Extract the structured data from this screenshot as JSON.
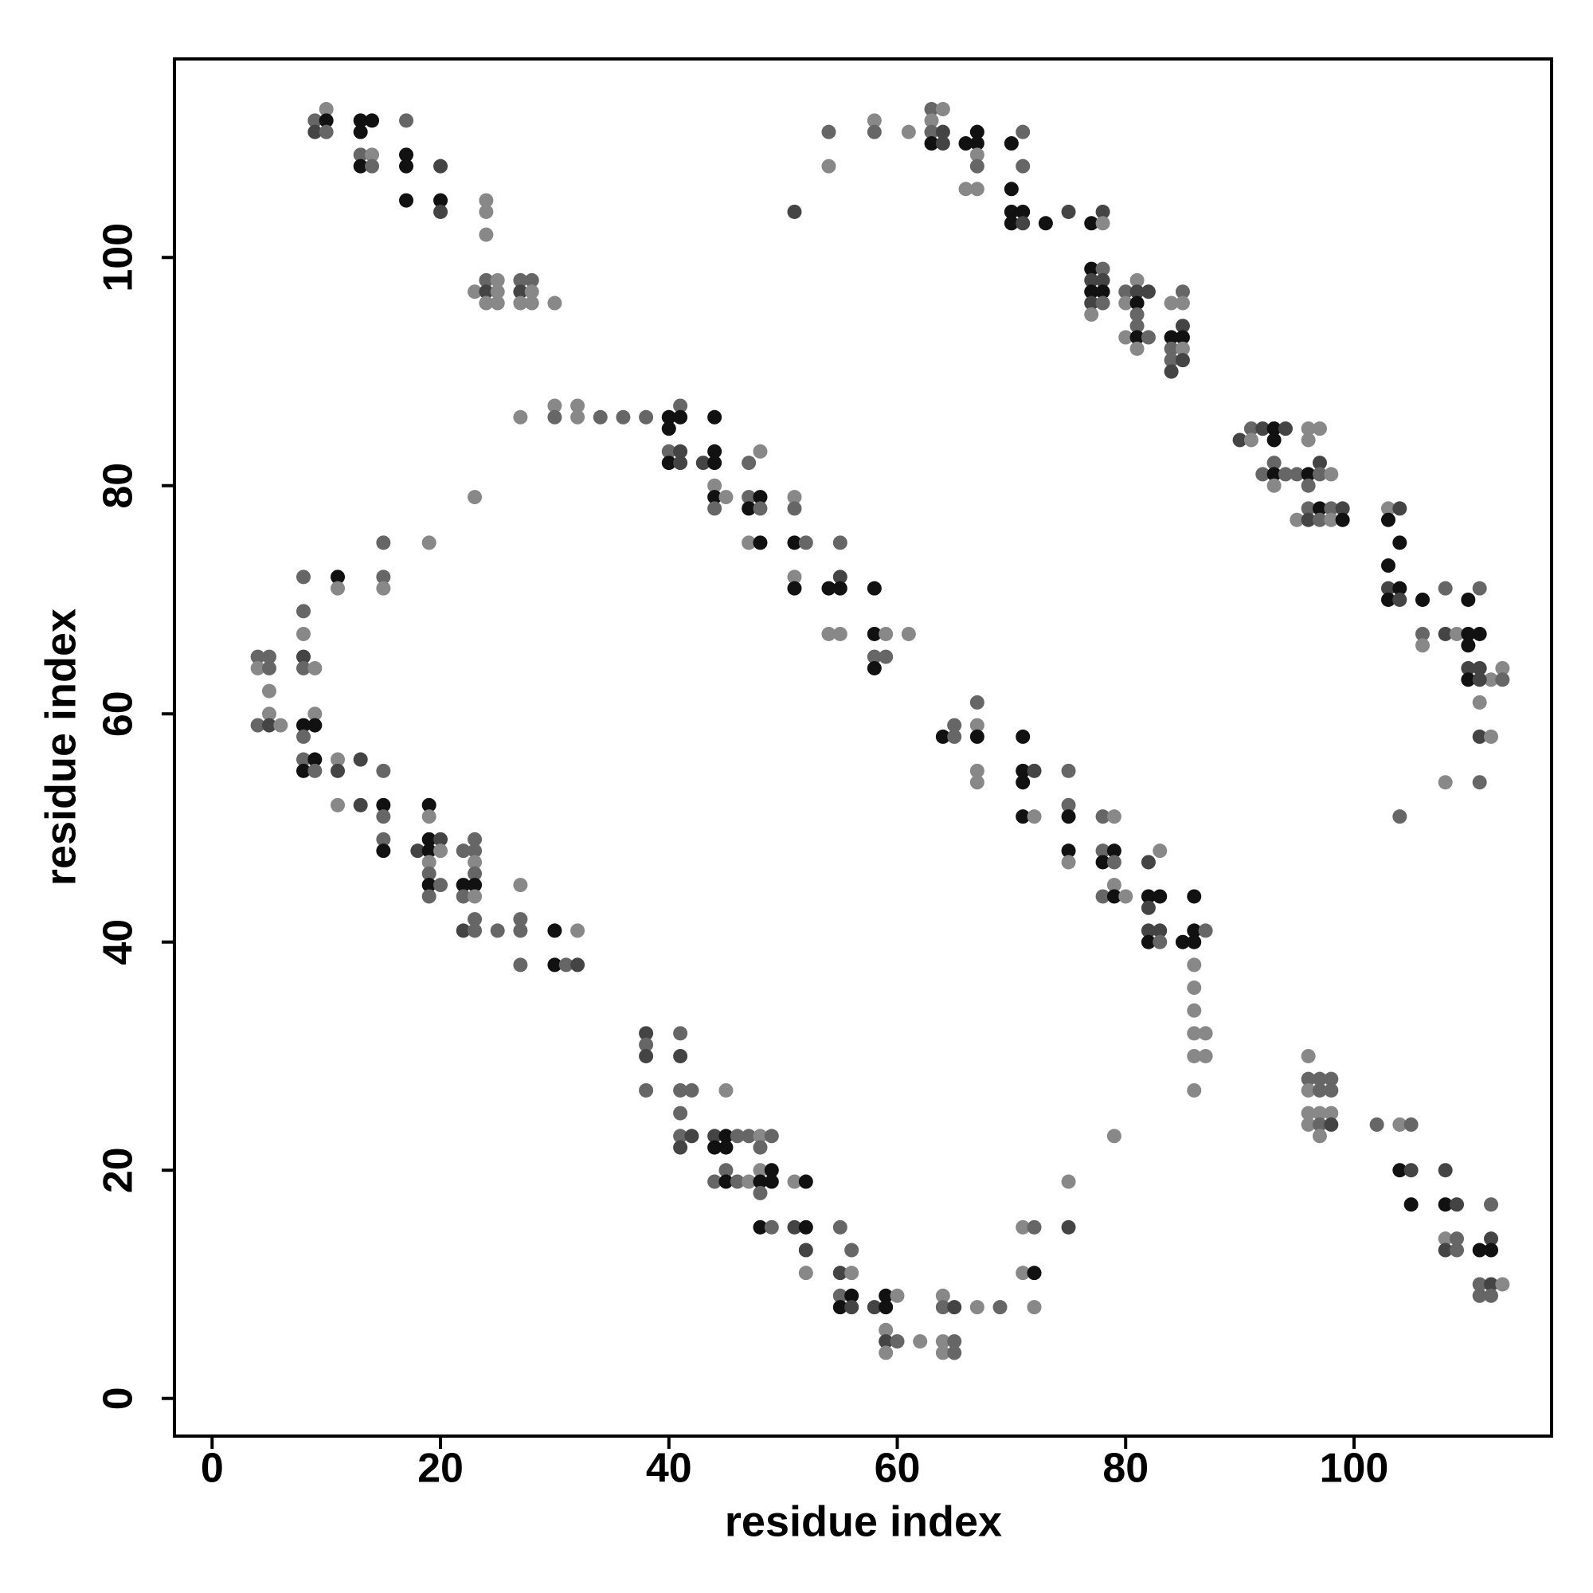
{
  "chart_data": {
    "type": "scatter",
    "xlabel": "residue index",
    "ylabel": "residue index",
    "xlim": [
      -3.3,
      117.3
    ],
    "ylim": [
      -3.3,
      117.4
    ],
    "xticks": [
      0,
      20,
      40,
      60,
      80,
      100
    ],
    "yticks": [
      0,
      20,
      40,
      60,
      80,
      100
    ],
    "grid": false,
    "x": [
      9,
      9,
      10,
      10,
      10,
      13,
      13,
      14,
      13,
      13,
      14,
      14,
      17,
      17,
      17,
      17,
      20,
      20,
      20,
      24,
      24,
      24,
      23,
      24,
      24,
      24,
      25,
      25,
      25,
      27,
      27,
      27,
      28,
      28,
      28,
      30,
      27,
      30,
      30,
      32,
      32,
      34,
      36,
      38,
      40,
      40,
      41,
      41,
      44,
      40,
      40,
      41,
      41,
      43,
      44,
      44,
      44,
      44,
      44,
      45,
      47,
      48,
      47,
      48,
      47,
      48,
      47,
      48,
      51,
      51,
      51,
      52,
      51,
      51,
      55,
      54,
      55,
      55,
      54,
      55,
      58,
      58,
      59,
      58,
      59,
      58,
      61,
      23,
      19,
      15,
      11,
      11,
      15,
      15,
      8,
      8,
      8,
      8,
      8,
      9,
      4,
      5,
      4,
      5,
      5,
      5,
      4,
      5,
      6,
      9,
      8,
      9,
      8,
      8,
      9,
      8,
      9,
      11,
      11,
      13,
      15,
      11,
      13,
      15,
      15,
      15,
      15,
      18,
      19,
      19,
      19,
      20,
      19,
      20,
      19,
      19,
      19,
      20,
      19,
      22,
      23,
      23,
      23,
      23,
      22,
      23,
      22,
      23,
      23,
      22,
      23,
      25,
      27,
      27,
      27,
      27,
      30,
      30,
      31,
      32,
      32,
      64,
      65,
      65,
      67,
      67,
      67,
      67,
      67,
      71,
      71,
      72,
      71,
      71,
      72,
      75,
      75,
      75,
      75,
      75,
      78,
      79,
      78,
      79,
      78,
      79,
      79,
      78,
      79,
      80,
      82,
      83,
      82,
      83,
      82,
      82,
      83,
      82,
      83,
      85,
      86,
      86,
      87,
      86,
      86,
      86,
      86,
      86,
      87,
      86,
      87,
      86,
      38,
      38,
      38,
      38,
      41,
      41,
      41,
      42,
      41,
      41,
      42,
      41,
      44,
      45,
      44,
      45,
      45,
      46,
      47,
      48,
      49,
      48,
      44,
      45,
      45,
      46,
      47,
      48,
      49,
      48,
      49,
      48,
      51,
      52,
      48,
      49,
      51,
      52,
      52,
      52,
      55,
      55,
      56,
      56,
      55,
      56,
      55,
      56,
      58,
      59,
      59,
      60,
      59,
      59,
      60,
      59,
      62,
      64,
      64,
      65,
      64,
      65,
      64,
      65,
      67,
      69,
      71,
      72,
      71,
      72,
      72,
      75,
      75,
      79,
      96,
      96,
      97,
      98,
      96,
      97,
      98,
      96,
      97,
      98,
      96,
      97,
      98,
      97,
      102,
      104,
      105,
      104,
      105,
      105,
      108,
      108,
      109,
      108,
      109,
      108,
      109,
      112,
      111,
      112,
      112,
      111,
      112,
      113,
      111,
      112,
      51,
      54,
      54,
      58,
      58,
      61,
      63,
      64,
      63,
      63,
      64,
      63,
      64,
      66,
      67,
      67,
      67,
      67,
      66,
      67,
      70,
      71,
      71,
      70,
      70,
      71,
      70,
      71,
      73,
      75,
      77,
      78,
      78,
      77,
      78,
      77,
      78,
      77,
      78,
      77,
      78,
      77,
      80,
      80,
      81,
      81,
      81,
      82,
      81,
      80,
      81,
      81,
      82,
      81,
      84,
      85,
      85,
      84,
      85,
      85,
      84,
      85,
      84,
      85,
      84,
      90,
      91,
      92,
      91,
      93,
      94,
      93,
      92,
      93,
      93,
      93,
      94,
      95,
      96,
      97,
      96,
      96,
      97,
      96,
      97,
      98,
      95,
      96,
      96,
      97,
      97,
      98,
      98,
      99,
      99,
      103,
      104,
      103,
      104,
      103,
      103,
      104,
      103,
      104,
      106,
      108,
      106,
      106,
      108,
      109,
      110,
      110,
      111,
      111,
      110,
      110,
      111,
      112,
      113,
      110,
      111,
      113,
      111,
      111,
      112,
      108,
      111,
      104
    ],
    "values": [
      112,
      111,
      113,
      112,
      111,
      112,
      111,
      112,
      109,
      108,
      109,
      108,
      112,
      109,
      108,
      105,
      108,
      105,
      104,
      105,
      104,
      102,
      97,
      98,
      97,
      96,
      98,
      97,
      96,
      98,
      97,
      96,
      98,
      97,
      96,
      96,
      86,
      87,
      86,
      87,
      86,
      86,
      86,
      86,
      86,
      85,
      87,
      86,
      86,
      83,
      82,
      83,
      82,
      82,
      83,
      82,
      80,
      79,
      78,
      79,
      82,
      83,
      79,
      79,
      78,
      78,
      75,
      75,
      79,
      78,
      75,
      75,
      72,
      71,
      75,
      71,
      72,
      71,
      67,
      67,
      71,
      67,
      67,
      65,
      65,
      64,
      67,
      79,
      75,
      75,
      72,
      71,
      72,
      71,
      72,
      69,
      67,
      65,
      64,
      64,
      65,
      65,
      64,
      64,
      62,
      60,
      59,
      59,
      59,
      60,
      59,
      59,
      58,
      56,
      56,
      55,
      55,
      56,
      55,
      56,
      55,
      52,
      52,
      52,
      51,
      49,
      48,
      48,
      52,
      51,
      49,
      49,
      48,
      48,
      47,
      46,
      45,
      45,
      44,
      48,
      49,
      48,
      47,
      46,
      45,
      45,
      44,
      44,
      42,
      41,
      41,
      41,
      45,
      42,
      41,
      38,
      41,
      38,
      38,
      41,
      38,
      58,
      59,
      58,
      61,
      59,
      58,
      55,
      54,
      58,
      55,
      55,
      54,
      51,
      51,
      55,
      52,
      51,
      48,
      47,
      51,
      51,
      48,
      48,
      47,
      47,
      45,
      44,
      44,
      44,
      47,
      48,
      44,
      44,
      43,
      41,
      41,
      40,
      40,
      40,
      41,
      40,
      41,
      44,
      38,
      36,
      34,
      32,
      32,
      30,
      30,
      27,
      32,
      31,
      30,
      27,
      32,
      30,
      27,
      27,
      25,
      23,
      23,
      22,
      23,
      23,
      22,
      22,
      27,
      23,
      23,
      23,
      23,
      22,
      19,
      20,
      19,
      19,
      19,
      20,
      20,
      19,
      19,
      18,
      19,
      19,
      15,
      15,
      15,
      15,
      13,
      11,
      15,
      11,
      13,
      11,
      9,
      9,
      8,
      8,
      8,
      9,
      8,
      9,
      6,
      5,
      5,
      4,
      5,
      9,
      8,
      8,
      5,
      5,
      4,
      4,
      8,
      8,
      15,
      15,
      11,
      11,
      8,
      19,
      15,
      23,
      30,
      28,
      28,
      28,
      27,
      27,
      27,
      25,
      25,
      25,
      24,
      24,
      24,
      23,
      24,
      24,
      24,
      20,
      20,
      17,
      20,
      17,
      17,
      14,
      14,
      13,
      13,
      17,
      13,
      14,
      13,
      10,
      10,
      10,
      9,
      9,
      104,
      111,
      108,
      112,
      111,
      111,
      113,
      113,
      112,
      111,
      111,
      110,
      110,
      110,
      111,
      110,
      109,
      108,
      106,
      106,
      110,
      111,
      108,
      106,
      104,
      104,
      103,
      103,
      103,
      104,
      103,
      104,
      103,
      99,
      99,
      98,
      98,
      97,
      97,
      96,
      96,
      95,
      97,
      96,
      98,
      97,
      96,
      97,
      95,
      93,
      94,
      93,
      93,
      92,
      96,
      97,
      96,
      93,
      94,
      93,
      92,
      92,
      91,
      91,
      90,
      84,
      85,
      85,
      84,
      85,
      85,
      84,
      81,
      82,
      81,
      80,
      81,
      81,
      85,
      85,
      84,
      81,
      82,
      80,
      81,
      81,
      77,
      78,
      77,
      78,
      77,
      78,
      77,
      78,
      77,
      78,
      78,
      77,
      75,
      73,
      71,
      71,
      70,
      70,
      70,
      71,
      67,
      66,
      67,
      67,
      70,
      67,
      67,
      71,
      66,
      64,
      64,
      63,
      64,
      63,
      63,
      63,
      61,
      58,
      58,
      54,
      54,
      51
    ],
    "colors": [
      "#666",
      "#444",
      "#888",
      "#111",
      "#666",
      "#111",
      "#111",
      "#111",
      "#666",
      "#111",
      "#888",
      "#666",
      "#666",
      "#111",
      "#111",
      "#111",
      "#444",
      "#111",
      "#444",
      "#888",
      "#888",
      "#888",
      "#888",
      "#666",
      "#444",
      "#888",
      "#888",
      "#888",
      "#888",
      "#666",
      "#444",
      "#888",
      "#666",
      "#888",
      "#888",
      "#888",
      "#888",
      "#888",
      "#666",
      "#888",
      "#888",
      "#666",
      "#666",
      "#666",
      "#111",
      "#111",
      "#666",
      "#111",
      "#111",
      "#666",
      "#111",
      "#444",
      "#444",
      "#444",
      "#111",
      "#111",
      "#888",
      "#111",
      "#666",
      "#888",
      "#666",
      "#888",
      "#666",
      "#111",
      "#111",
      "#666",
      "#888",
      "#111",
      "#888",
      "#666",
      "#111",
      "#666",
      "#888",
      "#111",
      "#666",
      "#111",
      "#444",
      "#111",
      "#888",
      "#888",
      "#111",
      "#111",
      "#888",
      "#666",
      "#666",
      "#111",
      "#888",
      "#888",
      "#888",
      "#666",
      "#111",
      "#888",
      "#666",
      "#888",
      "#666",
      "#666",
      "#888",
      "#444",
      "#666",
      "#888",
      "#666",
      "#666",
      "#888",
      "#666",
      "#888",
      "#888",
      "#666",
      "#444",
      "#888",
      "#888",
      "#111",
      "#111",
      "#666",
      "#666",
      "#111",
      "#111",
      "#666",
      "#888",
      "#444",
      "#444",
      "#666",
      "#888",
      "#444",
      "#111",
      "#666",
      "#666",
      "#111",
      "#444",
      "#111",
      "#888",
      "#111",
      "#444",
      "#111",
      "#888",
      "#888",
      "#666",
      "#111",
      "#666",
      "#666",
      "#666",
      "#666",
      "#666",
      "#888",
      "#666",
      "#111",
      "#111",
      "#666",
      "#888",
      "#666",
      "#444",
      "#666",
      "#666",
      "#888",
      "#666",
      "#666",
      "#666",
      "#111",
      "#111",
      "#666",
      "#888",
      "#444",
      "#111",
      "#666",
      "#666",
      "#666",
      "#888",
      "#111",
      "#888",
      "#888",
      "#111",
      "#111",
      "#444",
      "#111",
      "#111",
      "#888",
      "#666",
      "#666",
      "#111",
      "#111",
      "#888",
      "#666",
      "#888",
      "#666",
      "#111",
      "#111",
      "#666",
      "#888",
      "#666",
      "#111",
      "#888",
      "#444",
      "#888",
      "#111",
      "#111",
      "#444",
      "#444",
      "#444",
      "#111",
      "#666",
      "#111",
      "#111",
      "#111",
      "#666",
      "#111",
      "#888",
      "#888",
      "#888",
      "#888",
      "#888",
      "#888",
      "#888",
      "#888",
      "#444",
      "#666",
      "#444",
      "#666",
      "#666",
      "#444",
      "#666",
      "#666",
      "#666",
      "#666",
      "#444",
      "#444",
      "#444",
      "#111",
      "#111",
      "#111",
      "#888",
      "#666",
      "#666",
      "#888",
      "#666",
      "#666",
      "#666",
      "#666",
      "#111",
      "#666",
      "#888",
      "#888",
      "#111",
      "#111",
      "#111",
      "#666",
      "#888",
      "#111",
      "#111",
      "#666",
      "#444",
      "#111",
      "#444",
      "#888",
      "#666",
      "#444",
      "#666",
      "#888",
      "#666",
      "#111",
      "#111",
      "#444",
      "#444",
      "#111",
      "#111",
      "#888",
      "#888",
      "#444",
      "#666",
      "#888",
      "#888",
      "#888",
      "#666",
      "#444",
      "#888",
      "#666",
      "#888",
      "#666",
      "#888",
      "#666",
      "#888",
      "#666",
      "#888",
      "#111",
      "#888",
      "#888",
      "#444",
      "#888",
      "#888",
      "#666",
      "#666",
      "#666",
      "#888",
      "#666",
      "#666",
      "#888",
      "#888",
      "#888",
      "#888",
      "#666",
      "#444",
      "#888",
      "#666",
      "#888",
      "#666",
      "#111",
      "#444",
      "#111",
      "#444",
      "#111",
      "#444",
      "#888",
      "#666",
      "#444",
      "#666",
      "#666",
      "#111",
      "#444",
      "#111",
      "#666",
      "#444",
      "#888",
      "#666",
      "#666",
      "#444",
      "#666",
      "#888",
      "#888",
      "#666",
      "#888",
      "#666",
      "#888",
      "#888",
      "#666",
      "#444",
      "#111",
      "#444",
      "#111",
      "#111",
      "#111",
      "#888",
      "#666",
      "#888",
      "#888",
      "#111",
      "#666",
      "#666",
      "#111",
      "#111",
      "#111",
      "#111",
      "#444",
      "#111",
      "#444",
      "#111",
      "#444",
      "#888",
      "#111",
      "#666",
      "#444",
      "#444",
      "#111",
      "#111",
      "#444",
      "#666",
      "#888",
      "#666",
      "#888",
      "#888",
      "#444",
      "#111",
      "#444",
      "#666",
      "#888",
      "#666",
      "#111",
      "#666",
      "#888",
      "#888",
      "#666",
      "#888",
      "#111",
      "#444",
      "#111",
      "#666",
      "#888",
      "#666",
      "#444",
      "#444",
      "#444",
      "#666",
      "#444",
      "#888",
      "#111",
      "#444",
      "#111",
      "#666",
      "#666",
      "#111",
      "#888",
      "#666",
      "#666",
      "#888",
      "#888",
      "#888",
      "#111",
      "#444",
      "#666",
      "#666",
      "#888",
      "#888",
      "#666",
      "#444",
      "#111",
      "#666",
      "#666",
      "#888",
      "#444",
      "#111",
      "#888",
      "#444",
      "#111",
      "#111",
      "#111",
      "#444",
      "#111",
      "#111",
      "#444",
      "#111",
      "#666",
      "#666",
      "#888",
      "#444",
      "#888",
      "#111",
      "#111",
      "#111",
      "#666",
      "#111",
      "#444",
      "#444",
      "#888",
      "#888",
      "#111",
      "#444",
      "#666",
      "#888",
      "#444",
      "#888",
      "#888",
      "#666",
      "#666"
    ]
  }
}
